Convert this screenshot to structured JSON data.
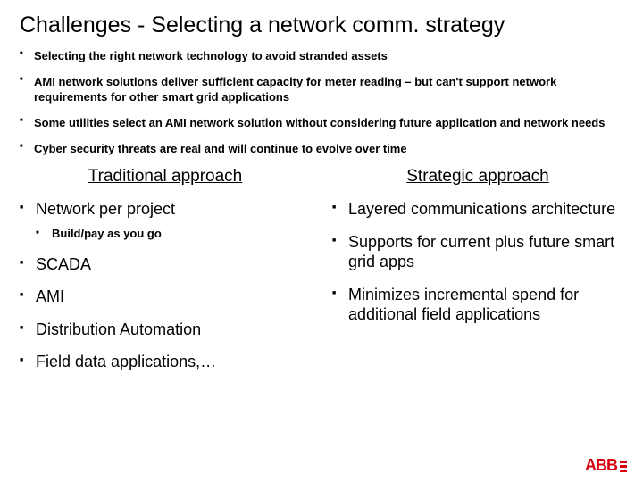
{
  "title": "Challenges - Selecting a network comm. strategy",
  "topBullets": [
    "Selecting the right network technology to avoid stranded assets",
    "AMI network solutions deliver sufficient capacity for meter reading – but can't support network requirements for other smart grid applications",
    "Some utilities select an AMI network solution without considering future application and network needs",
    "Cyber security threats are real and will continue to evolve over time"
  ],
  "leftCol": {
    "heading": "Traditional approach",
    "items": [
      {
        "text": "Network per project",
        "sub": [
          "Build/pay as you go"
        ]
      },
      {
        "text": "SCADA"
      },
      {
        "text": "AMI"
      },
      {
        "text": "Distribution Automation"
      },
      {
        "text": "Field data applications,…"
      }
    ]
  },
  "rightCol": {
    "heading": "Strategic approach",
    "items": [
      {
        "text": "Layered communications architecture"
      },
      {
        "text": "Supports for current plus future smart grid apps"
      },
      {
        "text": "Minimizes incremental spend for additional field applications"
      }
    ]
  },
  "logo": {
    "text": "ABB",
    "color": "#d9000d"
  },
  "styling": {
    "slide_width": 720,
    "slide_height": 540,
    "background_color": "#ffffff",
    "title_fontsize": 25,
    "title_weight": 400,
    "top_bullet_fontsize": 13,
    "top_bullet_weight": 700,
    "col_heading_fontsize": 19,
    "col_heading_underline": true,
    "col_bullet_fontsize": 18,
    "sub_bullet_fontsize": 13,
    "bullet_marker": "■",
    "text_color": "#000000"
  }
}
